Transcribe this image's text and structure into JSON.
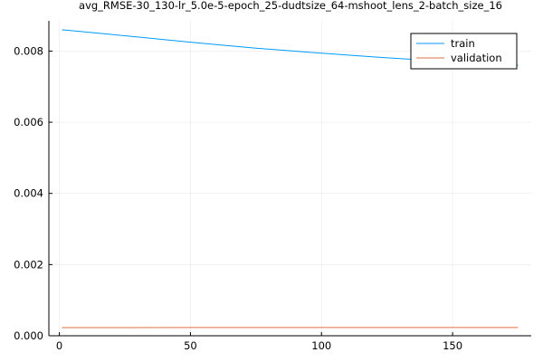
{
  "chart_data": {
    "type": "line",
    "title": "avg_RMSE-30_130-lr_5.0e-5-epoch_25-dudtsize_64-mshoot_lens_2-batch_size_16",
    "xlabel": "",
    "ylabel": "",
    "xlim": [
      -4,
      180
    ],
    "ylim": [
      0,
      0.00885
    ],
    "xticks": [
      0,
      50,
      100,
      150
    ],
    "xtick_labels": [
      "0",
      "50",
      "100",
      "150"
    ],
    "yticks": [
      0.0,
      0.002,
      0.004,
      0.006,
      0.008
    ],
    "ytick_labels": [
      "0.000",
      "0.002",
      "0.004",
      "0.006",
      "0.008"
    ],
    "grid": true,
    "legend_position": "top-right",
    "series": [
      {
        "name": "train",
        "color": "#009AFA",
        "x": [
          1,
          25,
          50,
          75,
          100,
          125,
          150,
          175
        ],
        "y": [
          0.0086,
          0.00843,
          0.00825,
          0.00808,
          0.00794,
          0.00781,
          0.0077,
          0.0076
        ]
      },
      {
        "name": "validation",
        "color": "#E36F47",
        "x": [
          1,
          25,
          50,
          75,
          100,
          125,
          150,
          175
        ],
        "y": [
          0.00023,
          0.00023,
          0.000231,
          0.000231,
          0.000232,
          0.000232,
          0.000233,
          0.000233
        ]
      }
    ]
  }
}
